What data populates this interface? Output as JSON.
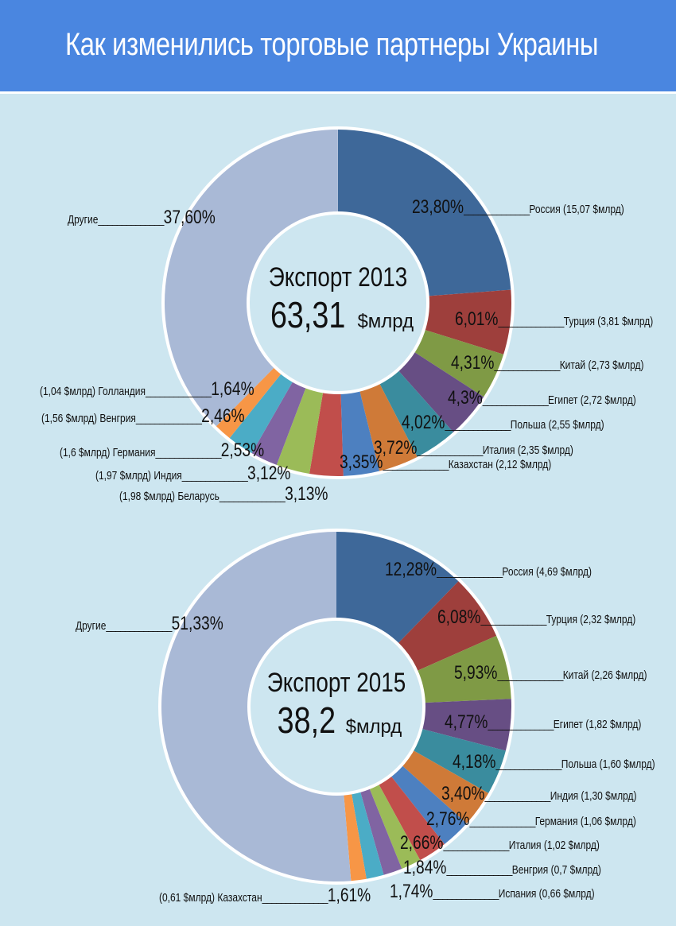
{
  "title": "Как изменились торговые партнеры Украины",
  "chart_data": [
    {
      "type": "pie",
      "title": "Экспорт 2013",
      "total": "63,31",
      "unit": "$млрд",
      "slices": [
        {
          "label": "Россия (15,07 $млрд)",
          "pct": "23,80%",
          "value": 23.8,
          "color": "#3e6899"
        },
        {
          "label": "Турция (3,81 $млрд)",
          "pct": "6,01%",
          "value": 6.01,
          "color": "#9e3f3c"
        },
        {
          "label": "Китай (2,73 $млрд)",
          "pct": "4,31%",
          "value": 4.31,
          "color": "#7f9a45"
        },
        {
          "label": "Египет (2,72 $млрд)",
          "pct": "4,3%",
          "value": 4.3,
          "color": "#674e84"
        },
        {
          "label": "Польша (2,55 $млрд)",
          "pct": "4,02%",
          "value": 4.02,
          "color": "#3a8c9e"
        },
        {
          "label": "Италия (2,35 $млрд)",
          "pct": "3,72%",
          "value": 3.72,
          "color": "#cf7a38"
        },
        {
          "label": "Казахстан (2,12 $млрд)",
          "pct": "3,35%",
          "value": 3.35,
          "color": "#4d80c0"
        },
        {
          "label": "(1,98 $млрд) Беларусь",
          "pct": "3,13%",
          "value": 3.13,
          "color": "#c14e4b"
        },
        {
          "label": "(1,97 $млрд) Индия",
          "pct": "3,12%",
          "value": 3.12,
          "color": "#9bbb58"
        },
        {
          "label": "(1,6 $млрд) Германия",
          "pct": "2,53%",
          "value": 2.53,
          "color": "#8064a2"
        },
        {
          "label": "(1,56 $млрд) Венгрия",
          "pct": "2,46%",
          "value": 2.46,
          "color": "#4bacc6"
        },
        {
          "label": "(1,04 $млрд) Голландия",
          "pct": "1,64%",
          "value": 1.64,
          "color": "#f79646"
        },
        {
          "label": "Другие",
          "pct": "37,60%",
          "value": 37.6,
          "color": "#a9b9d6"
        }
      ]
    },
    {
      "type": "pie",
      "title": "Экспорт 2015",
      "total": "38,2",
      "unit": "$млрд",
      "slices": [
        {
          "label": "Россия (4,69 $млрд)",
          "pct": "12,28%",
          "value": 12.28,
          "color": "#3e6899"
        },
        {
          "label": "Турция (2,32 $млрд)",
          "pct": "6,08%",
          "value": 6.08,
          "color": "#9e3f3c"
        },
        {
          "label": "Китай (2,26 $млрд)",
          "pct": "5,93%",
          "value": 5.93,
          "color": "#7f9a45"
        },
        {
          "label": "Египет (1,82 $млрд)",
          "pct": "4,77%",
          "value": 4.77,
          "color": "#674e84"
        },
        {
          "label": "Польша (1,60 $млрд)",
          "pct": "4,18%",
          "value": 4.18,
          "color": "#3a8c9e"
        },
        {
          "label": "Индия (1,30 $млрд)",
          "pct": "3,40%",
          "value": 3.4,
          "color": "#cf7a38"
        },
        {
          "label": "Германия (1,06 $млрд)",
          "pct": "2,76%",
          "value": 2.76,
          "color": "#4d80c0"
        },
        {
          "label": "Италия (1,02 $млрд)",
          "pct": "2,66%",
          "value": 2.66,
          "color": "#c14e4b"
        },
        {
          "label": "Венгрия (0,7 $млрд)",
          "pct": "1,84%",
          "value": 1.84,
          "color": "#9bbb58"
        },
        {
          "label": "Испания (0,66 $млрд)",
          "pct": "1,74%",
          "value": 1.74,
          "color": "#8064a2"
        },
        {
          "label": "(0,61 $млрд) Казахстан",
          "pct": "1,61%",
          "value": 1.61,
          "color": "#4bacc6"
        },
        {
          "label": "Другие",
          "pct": "51,33%",
          "value": 51.33,
          "color": "#a9b9d6"
        }
      ]
    }
  ]
}
